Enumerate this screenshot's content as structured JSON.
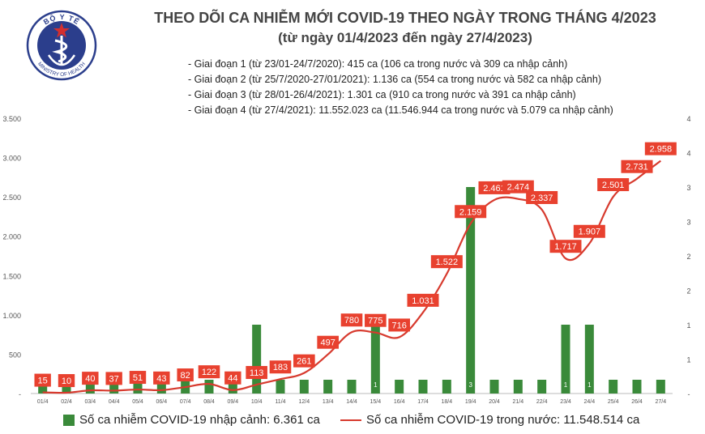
{
  "header": {
    "title": "THEO DÕI CA NHIỄM MỚI COVID-19 THEO NGÀY TRONG THÁNG 4/2023",
    "subtitle": "(từ ngày 01/4/2023 đến ngày 27/4/2023)",
    "phases": [
      "- Giai đoạn 1 (từ 23/01-24/7/2020): 415 ca (106 ca trong nước và 309 ca nhập cảnh)",
      "- Giai đoạn 2 (từ 25/7/2020-27/01/2021): 1.136 ca (554 ca trong nước và 582 ca nhập cảnh)",
      "- Giai đoạn 3 (từ 28/01-26/4/2021): 1.301 ca (910 ca trong nước và 391 ca nhập cảnh)",
      "- Giai đoạn 4 (từ 27/4/2021): 11.552.023 ca (11.546.944 ca trong nước và 5.079 ca nhập cảnh)"
    ]
  },
  "logo": {
    "top_text": "BỘ Y TẾ",
    "bottom_text": "MINISTRY OF HEALTH",
    "color": "#2b3e8c"
  },
  "colors": {
    "bar": "#3a8a3a",
    "line": "#d73a2e",
    "label_bg": "#e8412f",
    "title": "#444444"
  },
  "chart_data": {
    "type": "bar+line",
    "categories": [
      "01/4",
      "02/4",
      "03/4",
      "04/4",
      "05/4",
      "06/4",
      "07/4",
      "08/4",
      "09/4",
      "10/4",
      "11/4",
      "12/4",
      "13/4",
      "14/4",
      "15/4",
      "16/4",
      "17/4",
      "18/4",
      "19/4",
      "20/4",
      "21/4",
      "22/4",
      "23/4",
      "24/4",
      "25/4",
      "26/4",
      "27/4"
    ],
    "left_axis": {
      "ticks": [
        "-",
        "500",
        "1.000",
        "1.500",
        "2.000",
        "2.500",
        "3.000",
        "3.500"
      ],
      "range": [
        0,
        3500
      ]
    },
    "right_axis": {
      "ticks": [
        "-",
        "1",
        "1",
        "2",
        "2",
        "3",
        "3",
        "4",
        "4"
      ],
      "range": [
        0,
        4
      ]
    },
    "series": [
      {
        "name": "Số ca nhiễm COVID-19 nhập cảnh: 6.361 ca",
        "type": "bar",
        "axis": "right",
        "values": [
          0.2,
          0.2,
          0.2,
          0.2,
          0.2,
          0.2,
          0.2,
          0.2,
          0.2,
          1,
          0.2,
          0.2,
          0.2,
          0.2,
          1,
          0.2,
          0.2,
          0.2,
          3,
          0.2,
          0.2,
          0.2,
          1,
          1,
          0.2,
          0.2,
          0.2
        ],
        "labels": [
          "",
          "",
          "",
          "",
          "",
          "",
          "",
          "",
          "",
          "",
          "",
          "",
          "",
          "",
          "1",
          "",
          "",
          "",
          "3",
          "",
          "",
          "",
          "1",
          "1",
          "",
          "",
          ""
        ]
      },
      {
        "name": "Số ca nhiễm COVID-19 trong nước: 11.548.514 ca",
        "type": "line",
        "axis": "left",
        "values": [
          15,
          10,
          40,
          37,
          51,
          43,
          82,
          122,
          44,
          113,
          183,
          261,
          497,
          780,
          775,
          716,
          1031,
          1522,
          2159,
          2461,
          2474,
          2337,
          1717,
          1907,
          2501,
          2731,
          2958
        ],
        "labels": [
          "15",
          "10",
          "40",
          "37",
          "51",
          "43",
          "82",
          "122",
          "44",
          "113",
          "183",
          "261",
          "497",
          "780",
          "775",
          "716",
          "1.031",
          "1.522",
          "2.159",
          "2.461",
          "2.474",
          "2.337",
          "1.717",
          "1.907",
          "2.501",
          "2.731",
          "2.958"
        ]
      }
    ],
    "legend_position": "bottom"
  }
}
